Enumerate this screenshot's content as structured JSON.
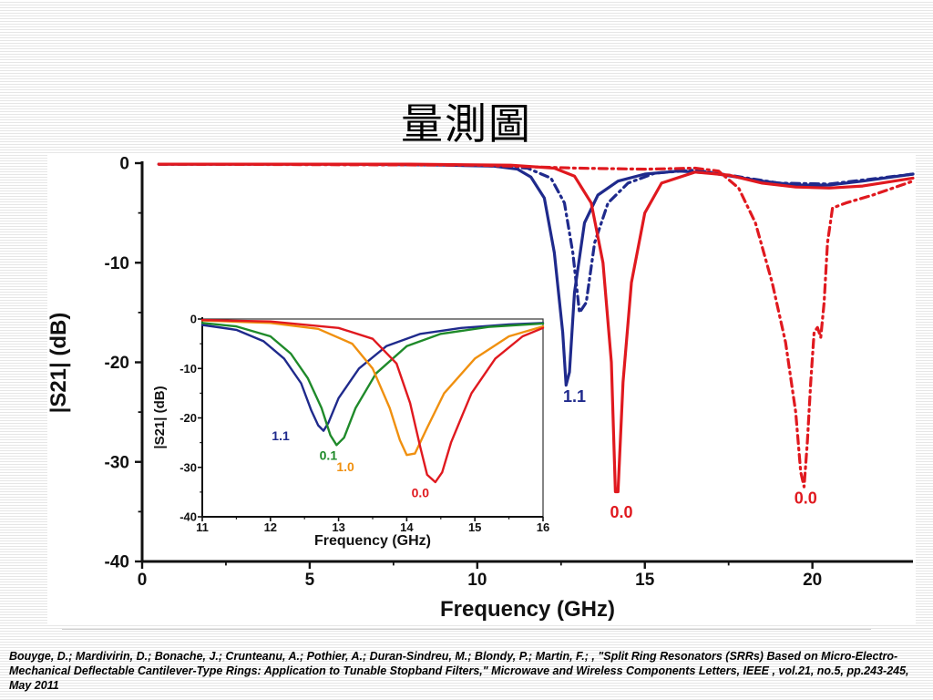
{
  "slide": {
    "title": "量測圖",
    "citation": "Bouyge, D.; Mardivirin, D.; Bonache, J.; Crunteanu, A.; Pothier, A.; Duran-Sindreu, M.; Blondy, P.; Martin, F.; , \"Split Ring Resonators (SRRs) Based on Micro-Electro-Mechanical Deflectable Cantilever-Type Rings: Application to Tunable Stopband Filters,\" Microwave and Wireless Components Letters, IEEE , vol.21, no.5, pp.243-245, May 2011"
  },
  "chart_data": [
    {
      "id": "main",
      "type": "line",
      "xlabel": "Frequency (GHz)",
      "ylabel": "|S21| (dB)",
      "xlim": [
        0,
        23
      ],
      "ylim": [
        -40,
        0
      ],
      "xticks": [
        0,
        5,
        10,
        15,
        20
      ],
      "yticks": [
        0,
        -10,
        -20,
        -30,
        -40
      ],
      "series": [
        {
          "name": "1.1",
          "color": "#1f2a8c",
          "style": "solid",
          "points": [
            [
              0.5,
              -0.1
            ],
            [
              3,
              -0.1
            ],
            [
              6,
              -0.1
            ],
            [
              9,
              -0.2
            ],
            [
              10.5,
              -0.3
            ],
            [
              11.2,
              -0.6
            ],
            [
              11.6,
              -1.4
            ],
            [
              12.0,
              -3.5
            ],
            [
              12.3,
              -9
            ],
            [
              12.55,
              -17
            ],
            [
              12.65,
              -22.3
            ],
            [
              12.75,
              -21
            ],
            [
              12.9,
              -13
            ],
            [
              13.2,
              -6
            ],
            [
              13.6,
              -3.2
            ],
            [
              14.2,
              -1.8
            ],
            [
              15.0,
              -1.1
            ],
            [
              16.0,
              -0.8
            ],
            [
              17.0,
              -1.0
            ],
            [
              18.5,
              -1.8
            ],
            [
              19.5,
              -2.2
            ],
            [
              20.5,
              -2.2
            ],
            [
              21.5,
              -1.8
            ],
            [
              23,
              -1.1
            ]
          ],
          "label": {
            "text": "1.1",
            "x": 12.9,
            "y": -24
          }
        },
        {
          "name": "dash-blue",
          "color": "#1f2a8c",
          "style": "dashdot",
          "points": [
            [
              0.5,
              -0.1
            ],
            [
              6,
              -0.1
            ],
            [
              10,
              -0.2
            ],
            [
              11.5,
              -0.5
            ],
            [
              12.2,
              -1.5
            ],
            [
              12.6,
              -4
            ],
            [
              12.85,
              -9
            ],
            [
              13.05,
              -15
            ],
            [
              13.25,
              -14
            ],
            [
              13.5,
              -8
            ],
            [
              13.9,
              -4
            ],
            [
              14.5,
              -2
            ],
            [
              15.3,
              -1.0
            ],
            [
              16.5,
              -0.7
            ],
            [
              17.5,
              -1.2
            ],
            [
              19,
              -2.0
            ],
            [
              20.5,
              -2.1
            ],
            [
              22,
              -1.5
            ],
            [
              23,
              -1.1
            ]
          ],
          "label": null
        },
        {
          "name": "0.0",
          "color": "#e0191f",
          "style": "solid",
          "points": [
            [
              0.5,
              -0.1
            ],
            [
              8,
              -0.1
            ],
            [
              11,
              -0.2
            ],
            [
              12.3,
              -0.5
            ],
            [
              12.9,
              -1.3
            ],
            [
              13.4,
              -4
            ],
            [
              13.75,
              -10
            ],
            [
              14.0,
              -20
            ],
            [
              14.12,
              -33
            ],
            [
              14.2,
              -33
            ],
            [
              14.35,
              -22
            ],
            [
              14.6,
              -12
            ],
            [
              15.0,
              -5
            ],
            [
              15.5,
              -2
            ],
            [
              16.5,
              -0.9
            ],
            [
              17.5,
              -1.2
            ],
            [
              18.5,
              -2
            ],
            [
              19.5,
              -2.4
            ],
            [
              20.5,
              -2.5
            ],
            [
              21.5,
              -2.3
            ],
            [
              23,
              -1.5
            ]
          ],
          "label": {
            "text": "0.0",
            "x": 14.3,
            "y": -35.6
          }
        },
        {
          "name": "dash-red",
          "color": "#e0191f",
          "style": "dashdot",
          "points": [
            [
              0.5,
              -0.1
            ],
            [
              10,
              -0.2
            ],
            [
              13,
              -0.5
            ],
            [
              15,
              -0.6
            ],
            [
              16.5,
              -0.5
            ],
            [
              17.2,
              -0.8
            ],
            [
              17.8,
              -2.5
            ],
            [
              18.3,
              -6
            ],
            [
              18.8,
              -12
            ],
            [
              19.2,
              -18
            ],
            [
              19.5,
              -25
            ],
            [
              19.65,
              -31
            ],
            [
              19.75,
              -32.5
            ],
            [
              19.85,
              -28
            ],
            [
              19.95,
              -22
            ],
            [
              20.05,
              -17
            ],
            [
              20.15,
              -16.5
            ],
            [
              20.25,
              -17.5
            ],
            [
              20.35,
              -14
            ],
            [
              20.45,
              -8
            ],
            [
              20.6,
              -4.5
            ],
            [
              21.0,
              -4
            ],
            [
              21.8,
              -3.2
            ],
            [
              23,
              -1.8
            ]
          ],
          "label": {
            "text": "0.0",
            "x": 19.8,
            "y": -34.2
          }
        }
      ]
    },
    {
      "id": "inset",
      "type": "line",
      "xlabel": "Frequency (GHz)",
      "ylabel": "|S21| (dB)",
      "xlim": [
        11,
        16
      ],
      "ylim": [
        -40,
        0
      ],
      "xticks": [
        11,
        12,
        13,
        14,
        15,
        16
      ],
      "yticks": [
        0,
        -10,
        -20,
        -30,
        -40
      ],
      "series": [
        {
          "name": "1.1",
          "color": "#1f2a8c",
          "style": "solid",
          "points": [
            [
              11,
              -1.2
            ],
            [
              11.5,
              -2.2
            ],
            [
              11.9,
              -4.5
            ],
            [
              12.2,
              -8
            ],
            [
              12.45,
              -13
            ],
            [
              12.6,
              -18.5
            ],
            [
              12.7,
              -21.5
            ],
            [
              12.78,
              -22.6
            ],
            [
              12.85,
              -21
            ],
            [
              13.0,
              -16
            ],
            [
              13.3,
              -10
            ],
            [
              13.7,
              -5.5
            ],
            [
              14.2,
              -3
            ],
            [
              14.8,
              -1.8
            ],
            [
              15.5,
              -1.1
            ],
            [
              16,
              -0.8
            ]
          ],
          "label": {
            "text": "1.1",
            "x": 12.15,
            "y": -24.5
          }
        },
        {
          "name": "0.1",
          "color": "#1f8a2a",
          "style": "solid",
          "points": [
            [
              11,
              -0.8
            ],
            [
              11.5,
              -1.5
            ],
            [
              12,
              -3.5
            ],
            [
              12.3,
              -7
            ],
            [
              12.55,
              -12
            ],
            [
              12.75,
              -18
            ],
            [
              12.88,
              -23.5
            ],
            [
              12.97,
              -25.5
            ],
            [
              13.08,
              -24
            ],
            [
              13.25,
              -18
            ],
            [
              13.55,
              -11
            ],
            [
              14.0,
              -5.5
            ],
            [
              14.5,
              -3
            ],
            [
              15.2,
              -1.6
            ],
            [
              16,
              -0.9
            ]
          ],
          "label": {
            "text": "0.1",
            "x": 12.85,
            "y": -28.5
          }
        },
        {
          "name": "1.0",
          "color": "#f0900f",
          "style": "solid",
          "points": [
            [
              11,
              -0.3
            ],
            [
              12,
              -0.8
            ],
            [
              12.7,
              -2
            ],
            [
              13.2,
              -5
            ],
            [
              13.5,
              -10
            ],
            [
              13.75,
              -18
            ],
            [
              13.9,
              -24.5
            ],
            [
              14.0,
              -27.5
            ],
            [
              14.12,
              -27.2
            ],
            [
              14.3,
              -22
            ],
            [
              14.55,
              -15
            ],
            [
              15.0,
              -8
            ],
            [
              15.5,
              -3.5
            ],
            [
              16,
              -1.5
            ]
          ],
          "label": {
            "text": "1.0",
            "x": 13.1,
            "y": -30.8
          }
        },
        {
          "name": "0.0",
          "color": "#e0191f",
          "style": "solid",
          "points": [
            [
              11,
              -0.2
            ],
            [
              12,
              -0.5
            ],
            [
              13,
              -1.8
            ],
            [
              13.5,
              -4
            ],
            [
              13.85,
              -9
            ],
            [
              14.05,
              -17
            ],
            [
              14.2,
              -26
            ],
            [
              14.3,
              -31.5
            ],
            [
              14.42,
              -33
            ],
            [
              14.52,
              -31
            ],
            [
              14.65,
              -25
            ],
            [
              14.8,
              -20
            ],
            [
              14.95,
              -15
            ],
            [
              15.3,
              -8
            ],
            [
              15.7,
              -3.5
            ],
            [
              16,
              -1.8
            ]
          ],
          "label": {
            "text": "0.0",
            "x": 14.2,
            "y": -36
          }
        }
      ]
    }
  ]
}
